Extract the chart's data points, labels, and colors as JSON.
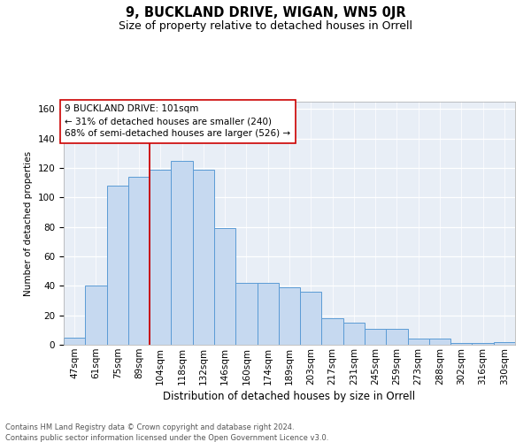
{
  "title": "9, BUCKLAND DRIVE, WIGAN, WN5 0JR",
  "subtitle": "Size of property relative to detached houses in Orrell",
  "xlabel": "Distribution of detached houses by size in Orrell",
  "ylabel": "Number of detached properties",
  "categories": [
    "47sqm",
    "61sqm",
    "75sqm",
    "89sqm",
    "104sqm",
    "118sqm",
    "132sqm",
    "146sqm",
    "160sqm",
    "174sqm",
    "189sqm",
    "203sqm",
    "217sqm",
    "231sqm",
    "245sqm",
    "259sqm",
    "273sqm",
    "288sqm",
    "302sqm",
    "316sqm",
    "330sqm"
  ],
  "bar_values": [
    5,
    40,
    108,
    114,
    119,
    125,
    119,
    79,
    42,
    42,
    39,
    36,
    18,
    15,
    11,
    11,
    4,
    4,
    1,
    1,
    2
  ],
  "bar_color": "#c6d9f0",
  "bar_edge_color": "#5b9bd5",
  "vline_pos": 3.5,
  "vline_color": "#cc0000",
  "annotation_text": "9 BUCKLAND DRIVE: 101sqm\n← 31% of detached houses are smaller (240)\n68% of semi-detached houses are larger (526) →",
  "annotation_box_color": "white",
  "annotation_box_edge": "#cc0000",
  "ylim": [
    0,
    165
  ],
  "yticks": [
    0,
    20,
    40,
    60,
    80,
    100,
    120,
    140,
    160
  ],
  "bg_color": "#e8eef6",
  "footer_line1": "Contains HM Land Registry data © Crown copyright and database right 2024.",
  "footer_line2": "Contains public sector information licensed under the Open Government Licence v3.0.",
  "title_fontsize": 10.5,
  "subtitle_fontsize": 9,
  "xlabel_fontsize": 8.5,
  "ylabel_fontsize": 7.5,
  "tick_fontsize": 7.5,
  "annotation_fontsize": 7.5,
  "footer_fontsize": 6.0
}
